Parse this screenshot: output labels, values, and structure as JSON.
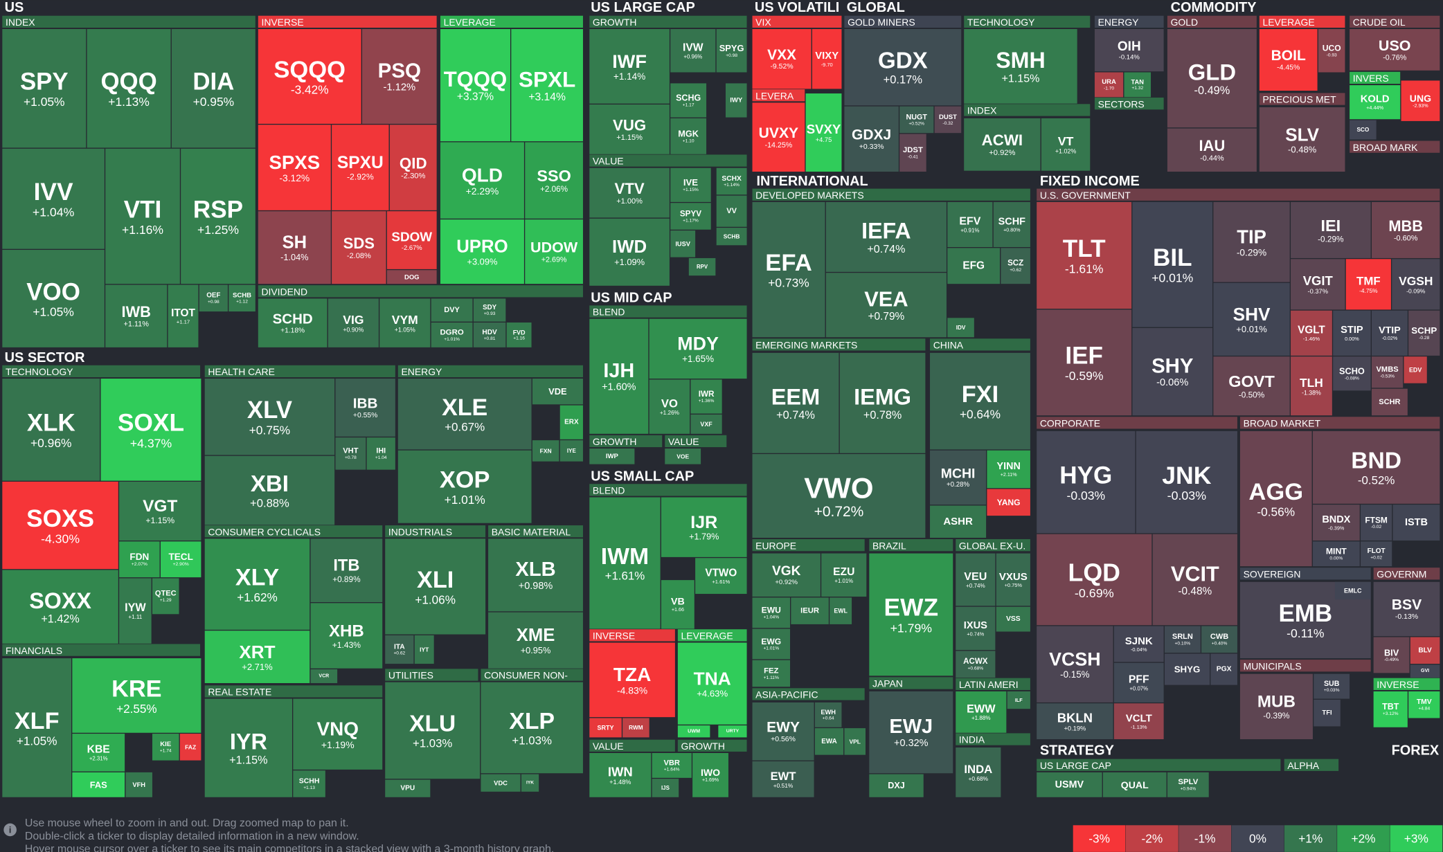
{
  "titles": [
    "US",
    "US SECTOR",
    "US LARGE CAP",
    "US MID CAP",
    "US SMALL CAP",
    "US VOLATILI",
    "GLOBAL",
    "COMMODITY",
    "INTERNATIONAL",
    "FIXED INCOME",
    "STRATEGY",
    "FOREX"
  ],
  "headers": [
    "INDEX",
    "INVERSE",
    "LEVERAGE",
    "DIVIDEND",
    "TECHNOLOGY",
    "FINANCIALS",
    "HEALTH CARE",
    "ENERGY",
    "CONSUMER CYCLICALS",
    "INDUSTRIALS",
    "BASIC MATERIAL",
    "REAL ESTATE",
    "UTILITIES",
    "CONSUMER NON-",
    "GROWTH",
    "VALUE",
    "BLEND",
    "GROWTH",
    "VALUE",
    "BLEND",
    "INVERSE",
    "LEVERAGE",
    "VALUE",
    "GROWTH",
    "VIX",
    "LEVERA",
    "GOLD MINERS",
    "TECHNOLOGY",
    "INDEX",
    "ENERGY",
    "SECTORS",
    "GOLD",
    "LEVERAGE",
    "PRECIOUS MET",
    "CRUDE OIL",
    "INVERS",
    "BROAD MARK",
    "DEVELOPED MARKETS",
    "EMERGING MARKETS",
    "CHINA",
    "EUROPE",
    "ASIA-PACIFIC",
    "BRAZIL",
    "JAPAN",
    "GLOBAL EX-U.",
    "LATIN AMERI",
    "INDIA",
    "U.S. GOVERNMENT",
    "CORPORATE",
    "BROAD MARKET",
    "SOVEREIGN",
    "GOVERNM",
    "MUNICIPALS",
    "INVERSE",
    "US LARGE CAP",
    "ALPHA"
  ],
  "tiles": [
    {
      "ticker": "SPY",
      "change": "+1.05%"
    },
    {
      "ticker": "QQQ",
      "change": "+1.13%"
    },
    {
      "ticker": "DIA",
      "change": "+0.95%"
    },
    {
      "ticker": "IVV",
      "change": "+1.04%"
    },
    {
      "ticker": "VTI",
      "change": "+1.16%"
    },
    {
      "ticker": "RSP",
      "change": "+1.25%"
    },
    {
      "ticker": "VOO",
      "change": "+1.05%"
    },
    {
      "ticker": "IWB",
      "change": "+1.11%"
    },
    {
      "ticker": "ITOT",
      "change": "+1.17"
    },
    {
      "ticker": "OEF",
      "change": "+0.98"
    },
    {
      "ticker": "SCHB",
      "change": "+1.12"
    },
    {
      "ticker": "SQQQ",
      "change": "-3.42%"
    },
    {
      "ticker": "PSQ",
      "change": "-1.12%"
    },
    {
      "ticker": "SPXS",
      "change": "-3.12%"
    },
    {
      "ticker": "SPXU",
      "change": "-2.92%"
    },
    {
      "ticker": "QID",
      "change": "-2.30%"
    },
    {
      "ticker": "SH",
      "change": "-1.04%"
    },
    {
      "ticker": "SDS",
      "change": "-2.08%"
    },
    {
      "ticker": "SDOW",
      "change": "-2.67%"
    },
    {
      "ticker": "DOG",
      "color": "#8b444e"
    },
    {
      "ticker": "TQQQ",
      "change": "+3.37%"
    },
    {
      "ticker": "SPXL",
      "change": "+3.14%"
    },
    {
      "ticker": "QLD",
      "change": "+2.29%"
    },
    {
      "ticker": "SSO",
      "change": "+2.06%"
    },
    {
      "ticker": "UPRO",
      "change": "+3.09%"
    },
    {
      "ticker": "UDOW",
      "change": "+2.69%"
    },
    {
      "ticker": "SCHD",
      "change": "+1.18%"
    },
    {
      "ticker": "VIG",
      "change": "+0.90%"
    },
    {
      "ticker": "VYM",
      "change": "+1.05%"
    },
    {
      "ticker": "DVY",
      "color": "#35764e"
    },
    {
      "ticker": "SDY",
      "change": "+0.93"
    },
    {
      "ticker": "DGRO",
      "change": "+1.01%"
    },
    {
      "ticker": "HDV",
      "change": "+0.81"
    },
    {
      "ticker": "FVD",
      "change": "+1.16"
    },
    {
      "ticker": "XLK",
      "change": "+0.96%"
    },
    {
      "ticker": "SOXL",
      "change": "+4.37%"
    },
    {
      "ticker": "SOXS",
      "change": "-4.30%"
    },
    {
      "ticker": "VGT",
      "change": "+1.15%"
    },
    {
      "ticker": "FDN",
      "change": "+2.07%"
    },
    {
      "ticker": "TECL",
      "change": "+2.90%"
    },
    {
      "ticker": "SOXX",
      "change": "+1.42%"
    },
    {
      "ticker": "IYW",
      "change": "+1.11"
    },
    {
      "ticker": "QTEC",
      "change": "+1.29"
    },
    {
      "ticker": "XLF",
      "change": "+1.05%"
    },
    {
      "ticker": "KRE",
      "change": "+2.55%"
    },
    {
      "ticker": "KBE",
      "change": "+2.31%"
    },
    {
      "ticker": "KIE",
      "change": "+1.74"
    },
    {
      "ticker": "FAZ",
      "color": "#e8393c"
    },
    {
      "ticker": "FAS",
      "color": "#30cc5a"
    },
    {
      "ticker": "VFH",
      "color": "#35764e"
    },
    {
      "ticker": "XLV",
      "change": "+0.75%"
    },
    {
      "ticker": "IBB",
      "change": "+0.55%"
    },
    {
      "ticker": "VHT",
      "change": "+0.78"
    },
    {
      "ticker": "IHI",
      "change": "+1.04"
    },
    {
      "ticker": "XBI",
      "change": "+0.88%"
    },
    {
      "ticker": "XLE",
      "change": "+0.67%"
    },
    {
      "ticker": "VDE",
      "color": "#35764e"
    },
    {
      "ticker": "ERX",
      "color": "#2f9e4f"
    },
    {
      "ticker": "FXN",
      "color": "#35764e"
    },
    {
      "ticker": "IYE",
      "color": "#35764e"
    },
    {
      "ticker": "XOP",
      "change": "+1.01%"
    },
    {
      "ticker": "XLY",
      "change": "+1.62%"
    },
    {
      "ticker": "ITB",
      "change": "+0.89%"
    },
    {
      "ticker": "XHB",
      "change": "+1.43%"
    },
    {
      "ticker": "XRT",
      "change": "+2.71%"
    },
    {
      "ticker": "VCR",
      "color": "#35764e"
    },
    {
      "ticker": "XLI",
      "change": "+1.06%"
    },
    {
      "ticker": "ITA",
      "change": "+0.62"
    },
    {
      "ticker": "IYT",
      "color": "#35764e"
    },
    {
      "ticker": "XLB",
      "change": "+0.98%"
    },
    {
      "ticker": "XME",
      "change": "+0.95%"
    },
    {
      "ticker": "IYR",
      "change": "+1.15%"
    },
    {
      "ticker": "VNQ",
      "change": "+1.19%"
    },
    {
      "ticker": "SCHH",
      "change": "+1.13"
    },
    {
      "ticker": "XLU",
      "change": "+1.03%"
    },
    {
      "ticker": "VPU",
      "color": "#35764e"
    },
    {
      "ticker": "XLP",
      "change": "+1.03%"
    },
    {
      "ticker": "VDC",
      "color": "#35764e"
    },
    {
      "ticker": "IYK",
      "color": "#35764e"
    },
    {
      "ticker": "IWF",
      "change": "+1.14%"
    },
    {
      "ticker": "IVW",
      "change": "+0.96%"
    },
    {
      "ticker": "SPYG",
      "change": "+0.98"
    },
    {
      "ticker": "VUG",
      "change": "+1.15%"
    },
    {
      "ticker": "SCHG",
      "change": "+1.17"
    },
    {
      "ticker": "IWY",
      "color": "#35764e"
    },
    {
      "ticker": "MGK",
      "change": "+1.10"
    },
    {
      "ticker": "VTV",
      "change": "+1.00%"
    },
    {
      "ticker": "IVE",
      "change": "+1.15%"
    },
    {
      "ticker": "SCHX",
      "change": "+1.14%"
    },
    {
      "ticker": "SPYV",
      "change": "+1.17%"
    },
    {
      "ticker": "VV",
      "color": "#35764e"
    },
    {
      "ticker": "SCHB",
      "color": "#35764e"
    },
    {
      "ticker": "IWD",
      "change": "+1.09%"
    },
    {
      "ticker": "IUSV",
      "color": "#35764e"
    },
    {
      "ticker": "RPV",
      "color": "#35764e"
    },
    {
      "ticker": "MDY",
      "change": "+1.65%"
    },
    {
      "ticker": "IJH",
      "change": "+1.60%"
    },
    {
      "ticker": "VO",
      "change": "+1.26%"
    },
    {
      "ticker": "IWR",
      "change": "+1.36%"
    },
    {
      "ticker": "VXF",
      "color": "#35764e"
    },
    {
      "ticker": "IWP",
      "color": "#35764e"
    },
    {
      "ticker": "VOE",
      "color": "#35764e"
    },
    {
      "ticker": "IJR",
      "change": "+1.79%"
    },
    {
      "ticker": "IWM",
      "change": "+1.61%"
    },
    {
      "ticker": "VTWO",
      "change": "+1.61%"
    },
    {
      "ticker": "VB",
      "change": "+1.66"
    },
    {
      "ticker": "TZA",
      "change": "-4.83%"
    },
    {
      "ticker": "TNA",
      "change": "+4.63%"
    },
    {
      "ticker": "SRTY",
      "color": "#e8393c"
    },
    {
      "ticker": "RWM",
      "color": "#bf4045"
    },
    {
      "ticker": "UWM",
      "color": "#30cc5a"
    },
    {
      "ticker": "URTY",
      "color": "#30cc5a"
    },
    {
      "ticker": "IWN",
      "change": "+1.48%"
    },
    {
      "ticker": "VBR",
      "change": "+1.64%"
    },
    {
      "ticker": "IJS",
      "color": "#35764e"
    },
    {
      "ticker": "IWO",
      "change": "+1.69%"
    },
    {
      "ticker": "VXX",
      "change": "-9.52%"
    },
    {
      "ticker": "VIXY",
      "change": "-9.70"
    },
    {
      "ticker": "UVXY",
      "change": "-14.25%"
    },
    {
      "ticker": "SVXY",
      "change": "+4.75"
    },
    {
      "ticker": "GDX",
      "change": "+0.17%"
    },
    {
      "ticker": "GDXJ",
      "change": "+0.33%"
    },
    {
      "ticker": "NUGT",
      "change": "+0.52%"
    },
    {
      "ticker": "DUST",
      "change": "-0.32"
    },
    {
      "ticker": "JDST",
      "change": "-0.41"
    },
    {
      "ticker": "SMH",
      "change": "+1.15%"
    },
    {
      "ticker": "ACWI",
      "change": "+0.92%"
    },
    {
      "ticker": "VT",
      "change": "+1.02%"
    },
    {
      "ticker": "OIH",
      "change": "-0.14%"
    },
    {
      "ticker": "URA",
      "change": "-1.70"
    },
    {
      "ticker": "TAN",
      "change": "+1.32"
    },
    {
      "ticker": "GLD",
      "change": "-0.49%"
    },
    {
      "ticker": "IAU",
      "change": "-0.44%"
    },
    {
      "ticker": "BOIL",
      "change": "-4.45%"
    },
    {
      "ticker": "UCO",
      "change": "-0.93"
    },
    {
      "ticker": "SLV",
      "change": "-0.48%"
    },
    {
      "ticker": "USO",
      "change": "-0.76%"
    },
    {
      "ticker": "KOLD",
      "change": "+4.44%"
    },
    {
      "ticker": "UNG",
      "change": "-2.93%"
    },
    {
      "ticker": "SCO",
      "color": "#414554"
    },
    {
      "ticker": "EFA",
      "change": "+0.73%"
    },
    {
      "ticker": "IEFA",
      "change": "+0.74%"
    },
    {
      "ticker": "VEA",
      "change": "+0.79%"
    },
    {
      "ticker": "EFV",
      "change": "+0.91%"
    },
    {
      "ticker": "SCHF",
      "change": "+0.80%"
    },
    {
      "ticker": "EFG",
      "color": "#35764e"
    },
    {
      "ticker": "SCZ",
      "change": "+0.62"
    },
    {
      "ticker": "IDV",
      "color": "#35764e"
    },
    {
      "ticker": "EEM",
      "change": "+0.74%"
    },
    {
      "ticker": "IEMG",
      "change": "+0.78%"
    },
    {
      "ticker": "VWO",
      "change": "+0.72%"
    },
    {
      "ticker": "FXI",
      "change": "+0.64%"
    },
    {
      "ticker": "MCHI",
      "change": "+0.28%"
    },
    {
      "ticker": "YINN",
      "change": "+2.11%"
    },
    {
      "ticker": "YANG",
      "color": "#e8393c"
    },
    {
      "ticker": "ASHR",
      "color": "#35764e"
    },
    {
      "ticker": "VGK",
      "change": "+0.92%"
    },
    {
      "ticker": "EZU",
      "change": "+1.01%"
    },
    {
      "ticker": "EWU",
      "change": "+1.04%"
    },
    {
      "ticker": "IEUR",
      "color": "#35764e"
    },
    {
      "ticker": "EWL",
      "color": "#35764e"
    },
    {
      "ticker": "EWG",
      "change": "+1.01%"
    },
    {
      "ticker": "FEZ",
      "change": "+1.11%"
    },
    {
      "ticker": "EWY",
      "change": "+0.56%"
    },
    {
      "ticker": "EWH",
      "change": "+0.64"
    },
    {
      "ticker": "EWA",
      "color": "#35764e"
    },
    {
      "ticker": "VPL",
      "color": "#35764e"
    },
    {
      "ticker": "EWT",
      "change": "+0.51%"
    },
    {
      "ticker": "EWZ",
      "change": "+1.79%"
    },
    {
      "ticker": "EWJ",
      "change": "+0.32%"
    },
    {
      "ticker": "DXJ",
      "color": "#35764e"
    },
    {
      "ticker": "VEU",
      "change": "+0.74%"
    },
    {
      "ticker": "VXUS",
      "change": "+0.75%"
    },
    {
      "ticker": "VSS",
      "color": "#35764e"
    },
    {
      "ticker": "IXUS",
      "change": "+0.74%"
    },
    {
      "ticker": "ACWX",
      "change": "+0.68%"
    },
    {
      "ticker": "EWW",
      "change": "+1.88%"
    },
    {
      "ticker": "ILF",
      "color": "#35764e"
    },
    {
      "ticker": "INDA",
      "change": "+0.68%"
    },
    {
      "ticker": "TLT",
      "change": "-1.61%"
    },
    {
      "ticker": "BIL",
      "change": "+0.01%"
    },
    {
      "ticker": "TIP",
      "change": "-0.29%"
    },
    {
      "ticker": "IEI",
      "change": "-0.29%"
    },
    {
      "ticker": "MBB",
      "change": "-0.60%"
    },
    {
      "ticker": "VGIT",
      "change": "-0.37%"
    },
    {
      "ticker": "TMF",
      "change": "-4.75%"
    },
    {
      "ticker": "VGSH",
      "change": "-0.09%"
    },
    {
      "ticker": "SHV",
      "change": "+0.01%"
    },
    {
      "ticker": "IEF",
      "change": "-0.59%"
    },
    {
      "ticker": "SHY",
      "change": "-0.06%"
    },
    {
      "ticker": "GOVT",
      "change": "-0.50%"
    },
    {
      "ticker": "VGLT",
      "change": "-1.46%"
    },
    {
      "ticker": "STIP",
      "change": "0.00%"
    },
    {
      "ticker": "VTIP",
      "change": "-0.02%"
    },
    {
      "ticker": "SCHP",
      "change": "-0.28"
    },
    {
      "ticker": "TLH",
      "change": "-1.38%"
    },
    {
      "ticker": "SCHO",
      "change": "-0.08%"
    },
    {
      "ticker": "VMBS",
      "change": "-0.53%"
    },
    {
      "ticker": "EDV",
      "color": "#bf4045"
    },
    {
      "ticker": "SCHR",
      "color": "#6b4450"
    },
    {
      "ticker": "HYG",
      "change": "-0.03%"
    },
    {
      "ticker": "JNK",
      "change": "-0.03%"
    },
    {
      "ticker": "LQD",
      "change": "-0.69%"
    },
    {
      "ticker": "VCIT",
      "change": "-0.48%"
    },
    {
      "ticker": "VCSH",
      "change": "-0.15%"
    },
    {
      "ticker": "SJNK",
      "change": "-0.04%"
    },
    {
      "ticker": "SRLN",
      "change": "+0.10%"
    },
    {
      "ticker": "CWB",
      "change": "+0.40%"
    },
    {
      "ticker": "PFF",
      "change": "+0.07%"
    },
    {
      "ticker": "SHYG",
      "color": "#414554"
    },
    {
      "ticker": "PGX",
      "color": "#414554"
    },
    {
      "ticker": "BKLN",
      "change": "+0.19%"
    },
    {
      "ticker": "VCLT",
      "change": "-1.13%"
    },
    {
      "ticker": "BND",
      "change": "-0.52%"
    },
    {
      "ticker": "AGG",
      "change": "-0.56%"
    },
    {
      "ticker": "BNDX",
      "change": "-0.39%"
    },
    {
      "ticker": "FTSM",
      "change": "-0.02"
    },
    {
      "ticker": "ISTB",
      "color": "#414554"
    },
    {
      "ticker": "MINT",
      "change": "0.00%"
    },
    {
      "ticker": "FLOT",
      "change": "+0.02"
    },
    {
      "ticker": "EMB",
      "change": "-0.11%"
    },
    {
      "ticker": "EMLC",
      "color": "#414554"
    },
    {
      "ticker": "BSV",
      "change": "-0.13%"
    },
    {
      "ticker": "BIV",
      "change": "-0.49%"
    },
    {
      "ticker": "BLV",
      "color": "#bf4045"
    },
    {
      "ticker": "GVI",
      "color": "#414554"
    },
    {
      "ticker": "MUB",
      "change": "-0.39%"
    },
    {
      "ticker": "SUB",
      "change": "+0.03%"
    },
    {
      "ticker": "TFI",
      "color": "#414554"
    },
    {
      "ticker": "TBT",
      "change": "+3.12%"
    },
    {
      "ticker": "TMV",
      "change": "+4.84"
    },
    {
      "ticker": "USMV",
      "color": "#35764e"
    },
    {
      "ticker": "QUAL",
      "color": "#35764e"
    },
    {
      "ticker": "SPLV",
      "change": "+0.94%"
    }
  ],
  "footer": {
    "lines": [
      "Use mouse wheel to zoom in and out. Drag zoomed map to pan it.",
      "Double-click a ticker to display detailed information in a new window.",
      "Hover mouse cursor over a ticker to see its main competitors in a stacked view with a 3-month history graph."
    ]
  },
  "legend": [
    {
      "label": "-3%",
      "color": "#f63538"
    },
    {
      "label": "-2%",
      "color": "#bf4045"
    },
    {
      "label": "-1%",
      "color": "#8b444e"
    },
    {
      "label": "0%",
      "color": "#414554"
    },
    {
      "label": "+1%",
      "color": "#35764e"
    },
    {
      "label": "+2%",
      "color": "#2f9e4f"
    },
    {
      "label": "+3%",
      "color": "#30cc5a"
    }
  ]
}
